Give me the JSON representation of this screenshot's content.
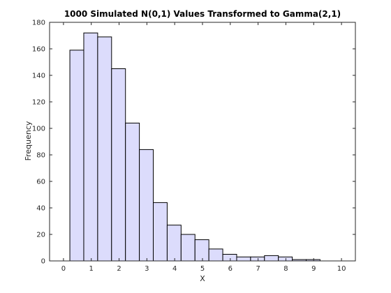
{
  "chart_data": {
    "type": "bar",
    "title": "1000 Simulated N(0,1) Values Transformed to Gamma(2,1)",
    "xlabel": "X",
    "ylabel": "Frequency",
    "xlim": [
      -0.5,
      10.5
    ],
    "ylim": [
      0,
      180
    ],
    "xticks": [
      "0",
      "1",
      "2",
      "3",
      "4",
      "5",
      "6",
      "7",
      "8",
      "9",
      "10"
    ],
    "yticks": [
      "0",
      "20",
      "40",
      "60",
      "80",
      "100",
      "120",
      "140",
      "160",
      "180"
    ],
    "bins": [
      {
        "x0": 0.23,
        "x1": 0.73,
        "value": 159
      },
      {
        "x0": 0.73,
        "x1": 1.23,
        "value": 172
      },
      {
        "x0": 1.23,
        "x1": 1.73,
        "value": 169
      },
      {
        "x0": 1.73,
        "x1": 2.23,
        "value": 145
      },
      {
        "x0": 2.23,
        "x1": 2.73,
        "value": 104
      },
      {
        "x0": 2.73,
        "x1": 3.23,
        "value": 84
      },
      {
        "x0": 3.23,
        "x1": 3.73,
        "value": 44
      },
      {
        "x0": 3.73,
        "x1": 4.23,
        "value": 27
      },
      {
        "x0": 4.23,
        "x1": 4.73,
        "value": 20
      },
      {
        "x0": 4.73,
        "x1": 5.23,
        "value": 16
      },
      {
        "x0": 5.23,
        "x1": 5.73,
        "value": 9
      },
      {
        "x0": 5.73,
        "x1": 6.23,
        "value": 5
      },
      {
        "x0": 6.23,
        "x1": 6.73,
        "value": 3
      },
      {
        "x0": 6.73,
        "x1": 7.23,
        "value": 3
      },
      {
        "x0": 7.23,
        "x1": 7.73,
        "value": 4
      },
      {
        "x0": 7.73,
        "x1": 8.23,
        "value": 3
      },
      {
        "x0": 8.23,
        "x1": 8.73,
        "value": 1
      },
      {
        "x0": 8.73,
        "x1": 9.23,
        "value": 1
      },
      {
        "x0": 9.23,
        "x1": 9.73,
        "value": 0
      }
    ],
    "bar_color": "#dcdcfc",
    "edge_color": "#000000",
    "grid": false,
    "box": true
  }
}
